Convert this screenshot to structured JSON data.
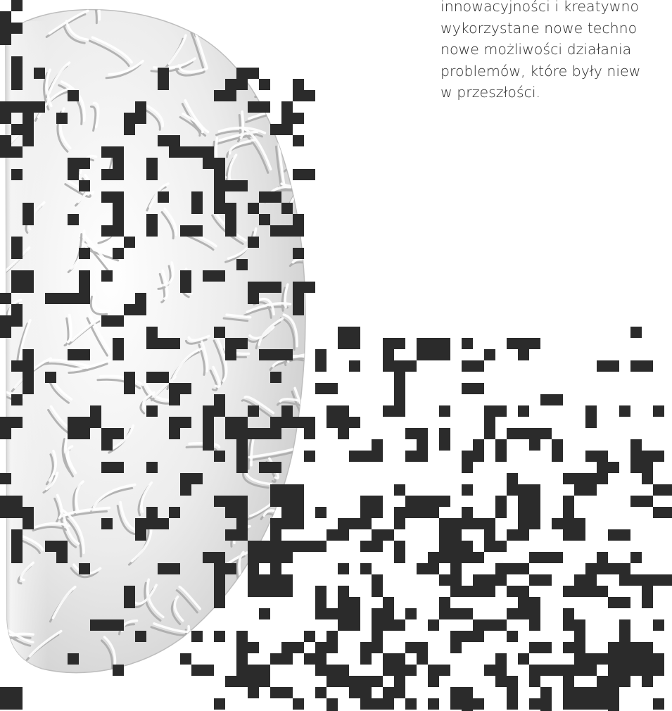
{
  "paragraph": {
    "lines": [
      "innowacyjności i kreatywno",
      "wykorzystane nowe techno",
      "nowe możliwości działania",
      "problemów, które były niew",
      "w przeszłości."
    ]
  },
  "illustration": {
    "subject": "brain-hemisphere-with-pixel-dissolve",
    "pixel_color": "#2b2b2b",
    "brain_color": "#e6e6e6"
  }
}
